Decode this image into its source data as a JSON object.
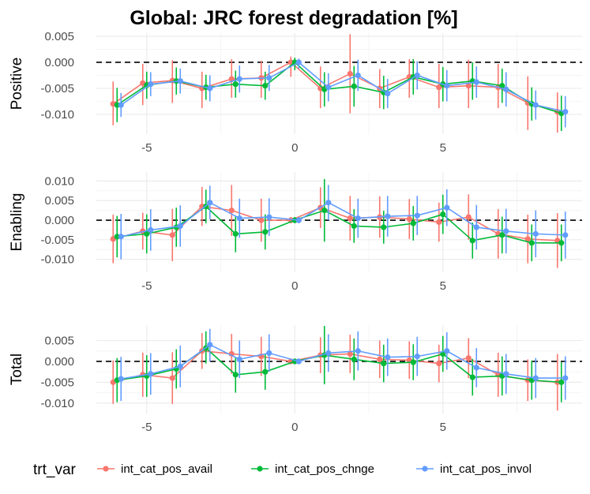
{
  "title": "Global: JRC forest degradation [%]",
  "legend": {
    "title": "trt_var",
    "entries": [
      "int_cat_pos_avail",
      "int_cat_pos_chnge",
      "int_cat_pos_invol"
    ]
  },
  "colors": {
    "int_cat_pos_avail": "#F8766D",
    "int_cat_pos_chnge": "#00BA38",
    "int_cat_pos_invol": "#619CFF",
    "zero_line": "#000000",
    "grid_major": "#EBEBEB",
    "grid_minor": "#F4F4F4"
  },
  "chart_data": [
    {
      "type": "line",
      "panel": "Positive",
      "ylabel": "Positive",
      "xlabel": "",
      "xlim": [
        -6.7,
        9.7
      ],
      "ylim": [
        -0.0138,
        0.0056
      ],
      "x_ticks": [
        -5,
        0,
        5
      ],
      "x_tick_labels": [
        "-5",
        "0",
        "5"
      ],
      "y_ticks": [
        0.005,
        0.0,
        -0.005,
        -0.01
      ],
      "y_tick_labels": [
        "0.005",
        "0.000",
        "-0.005",
        "-0.010"
      ],
      "grid": true,
      "reference_line": 0,
      "x": [
        -6,
        -5,
        -4,
        -3,
        -2,
        -1,
        0,
        1,
        2,
        3,
        4,
        5,
        6,
        7,
        8,
        9
      ],
      "series": [
        {
          "name": "int_cat_pos_avail",
          "values": [
            -0.008,
            -0.004,
            -0.0035,
            -0.005,
            -0.0032,
            -0.003,
            0.0,
            -0.005,
            -0.0022,
            -0.005,
            -0.0028,
            -0.0048,
            -0.0045,
            -0.0048,
            -0.0078,
            -0.0095
          ],
          "lower": [
            -0.0121,
            -0.0082,
            -0.0078,
            -0.0088,
            -0.0068,
            -0.0068,
            -0.0028,
            -0.0088,
            -0.0098,
            -0.0088,
            -0.0068,
            -0.0088,
            -0.0088,
            -0.0088,
            -0.013,
            -0.0135
          ],
          "upper": [
            -0.0037,
            -0.0003,
            0.0004,
            -0.0018,
            0.0006,
            0.0003,
            0.0011,
            -0.0008,
            0.0054,
            -0.0013,
            0.0006,
            -0.0003,
            0.0005,
            -0.0003,
            -0.0027,
            -0.0058
          ]
        },
        {
          "name": "int_cat_pos_chnge",
          "values": [
            -0.0082,
            -0.0044,
            -0.0036,
            -0.0048,
            -0.0042,
            -0.0045,
            0.0,
            -0.0052,
            -0.0046,
            -0.0058,
            -0.0028,
            -0.0042,
            -0.0036,
            -0.0045,
            -0.008,
            -0.0098
          ],
          "lower": [
            -0.0115,
            -0.007,
            -0.0062,
            -0.0072,
            -0.0068,
            -0.0072,
            -0.0015,
            -0.0085,
            -0.0085,
            -0.009,
            -0.0062,
            -0.0075,
            -0.0072,
            -0.0078,
            -0.0112,
            -0.0132
          ],
          "upper": [
            -0.0049,
            -0.0018,
            -0.001,
            -0.0024,
            -0.0016,
            -0.0018,
            0.0009,
            -0.0019,
            -0.0007,
            -0.0026,
            0.0006,
            -0.0009,
            0.0,
            -0.0012,
            -0.0048,
            -0.0064
          ]
        },
        {
          "name": "int_cat_pos_invol",
          "values": [
            -0.0082,
            -0.0042,
            -0.0036,
            -0.005,
            -0.0032,
            -0.003,
            0.0,
            -0.0048,
            -0.0025,
            -0.006,
            -0.0025,
            -0.0045,
            -0.0038,
            -0.0052,
            -0.0082,
            -0.0095
          ],
          "lower": [
            -0.0105,
            -0.0065,
            -0.006,
            -0.0075,
            -0.0058,
            -0.0055,
            -0.0012,
            -0.0075,
            -0.0055,
            -0.0088,
            -0.0052,
            -0.0075,
            -0.0068,
            -0.0085,
            -0.011,
            -0.0125
          ],
          "upper": [
            -0.0059,
            -0.0019,
            -0.0012,
            -0.0025,
            -0.0006,
            -0.0005,
            0.0007,
            -0.0021,
            0.0005,
            -0.0032,
            0.0002,
            -0.0015,
            -0.0008,
            -0.0019,
            -0.0054,
            -0.0065
          ]
        }
      ]
    },
    {
      "type": "line",
      "panel": "Enabling",
      "ylabel": "Enabling",
      "xlabel": "",
      "xlim": [
        -6.7,
        9.7
      ],
      "ylim": [
        -0.0133,
        0.0123
      ],
      "x_ticks": [
        -5,
        0,
        5
      ],
      "x_tick_labels": [
        "-5",
        "0",
        "5"
      ],
      "y_ticks": [
        0.01,
        0.005,
        0.0,
        -0.005,
        -0.01
      ],
      "y_tick_labels": [
        "0.010",
        "0.005",
        "0.000",
        "-0.005",
        "-0.010"
      ],
      "grid": true,
      "reference_line": 0,
      "x": [
        -6,
        -5,
        -4,
        -3,
        -2,
        -1,
        0,
        1,
        2,
        3,
        4,
        5,
        6,
        7,
        8,
        9
      ],
      "series": [
        {
          "name": "int_cat_pos_avail",
          "values": [
            -0.0048,
            -0.0028,
            -0.0038,
            0.0035,
            0.0025,
            0.0,
            0.0,
            0.0032,
            0.0005,
            0.0008,
            0.0003,
            -0.0005,
            0.0008,
            -0.0035,
            -0.0048,
            -0.0052
          ],
          "lower": [
            -0.011,
            -0.0075,
            -0.0105,
            -0.0015,
            -0.004,
            -0.0055,
            -0.0008,
            -0.002,
            -0.0052,
            -0.0045,
            -0.0048,
            -0.0055,
            -0.005,
            -0.0098,
            -0.011,
            -0.0122
          ],
          "upper": [
            0.0014,
            0.0019,
            0.0029,
            0.0085,
            0.009,
            0.0055,
            0.0008,
            0.0084,
            0.0062,
            0.0061,
            0.0054,
            0.0045,
            0.0066,
            0.0028,
            0.0014,
            0.0018
          ]
        },
        {
          "name": "int_cat_pos_chnge",
          "values": [
            -0.0042,
            -0.0035,
            -0.0018,
            0.0035,
            -0.0035,
            -0.003,
            0.0,
            0.0025,
            -0.0015,
            -0.0018,
            -0.0008,
            0.0015,
            -0.0052,
            -0.0038,
            -0.0058,
            -0.0058
          ],
          "lower": [
            -0.0095,
            -0.0085,
            -0.0068,
            -0.0008,
            -0.0082,
            -0.0075,
            -0.0008,
            -0.0055,
            -0.0058,
            -0.006,
            -0.0052,
            -0.0035,
            -0.0098,
            -0.0085,
            -0.0105,
            -0.0105
          ],
          "upper": [
            0.0011,
            0.0015,
            0.0032,
            0.0078,
            0.0012,
            0.0015,
            0.0008,
            0.0105,
            0.0028,
            0.0024,
            0.0036,
            0.0065,
            -0.0006,
            0.0009,
            -0.0011,
            -0.0011
          ]
        },
        {
          "name": "int_cat_pos_invol",
          "values": [
            -0.0042,
            -0.0025,
            -0.0015,
            0.0045,
            0.0005,
            0.0008,
            0.0,
            0.0045,
            0.0005,
            0.001,
            0.0012,
            0.0032,
            -0.0018,
            -0.0028,
            -0.0035,
            -0.0038
          ],
          "lower": [
            -0.01,
            -0.0078,
            -0.0068,
            0.0002,
            -0.0045,
            -0.004,
            -0.0008,
            0.0,
            -0.0045,
            -0.0042,
            -0.0038,
            -0.0015,
            -0.0075,
            -0.0085,
            -0.0095,
            -0.0098
          ],
          "upper": [
            0.0016,
            0.0028,
            0.0038,
            0.0088,
            0.0055,
            0.0056,
            0.0008,
            0.009,
            0.0055,
            0.0062,
            0.0062,
            0.0079,
            0.0039,
            0.0029,
            0.0025,
            0.0022
          ]
        }
      ]
    },
    {
      "type": "line",
      "panel": "Total",
      "ylabel": "Total",
      "xlabel": "",
      "xlim": [
        -6.7,
        9.7
      ],
      "ylim": [
        -0.0125,
        0.0087
      ],
      "x_ticks": [
        -5,
        0,
        5
      ],
      "x_tick_labels": [
        "-5",
        "0",
        "5"
      ],
      "y_ticks": [
        0.005,
        0.0,
        -0.005,
        -0.01
      ],
      "y_tick_labels": [
        "0.005",
        "0.000",
        "-0.005",
        "-0.010"
      ],
      "grid": true,
      "reference_line": 0,
      "x": [
        -6,
        -5,
        -4,
        -3,
        -2,
        -1,
        0,
        1,
        2,
        3,
        4,
        5,
        6,
        7,
        8,
        9
      ],
      "series": [
        {
          "name": "int_cat_pos_avail",
          "values": [
            -0.005,
            -0.0032,
            -0.004,
            0.0025,
            0.0018,
            0.0012,
            0.0,
            0.0015,
            0.0018,
            0.0005,
            0.0003,
            -0.0005,
            0.0008,
            -0.0032,
            -0.0045,
            -0.005
          ],
          "lower": [
            -0.0102,
            -0.0085,
            -0.0102,
            -0.0018,
            -0.003,
            -0.0035,
            -0.0007,
            -0.0028,
            -0.0028,
            -0.004,
            -0.0042,
            -0.005,
            -0.004,
            -0.0085,
            -0.0095,
            -0.0118
          ],
          "upper": [
            0.0002,
            0.0021,
            0.0022,
            0.0068,
            0.0066,
            0.0059,
            0.0007,
            0.0058,
            0.0064,
            0.005,
            0.0048,
            0.004,
            0.0056,
            0.0021,
            0.0005,
            0.0018
          ]
        },
        {
          "name": "int_cat_pos_chnge",
          "values": [
            -0.0045,
            -0.0035,
            -0.0018,
            0.0032,
            -0.0032,
            -0.0025,
            0.0,
            0.0015,
            0.0005,
            -0.0005,
            -0.0002,
            0.0018,
            -0.0038,
            -0.0035,
            -0.0045,
            -0.005
          ],
          "lower": [
            -0.0098,
            -0.0085,
            -0.0065,
            -0.0005,
            -0.0075,
            -0.0068,
            -0.0007,
            -0.0055,
            -0.0045,
            -0.005,
            -0.0045,
            -0.0025,
            -0.0082,
            -0.0082,
            -0.0092,
            -0.0098
          ],
          "upper": [
            0.0008,
            0.0015,
            0.0029,
            0.0072,
            0.0011,
            0.0018,
            0.0007,
            0.0085,
            0.0055,
            0.004,
            0.0041,
            0.0061,
            0.0006,
            0.0012,
            0.0002,
            -0.0002
          ]
        },
        {
          "name": "int_cat_pos_invol",
          "values": [
            -0.0042,
            -0.003,
            -0.0012,
            0.004,
            0.0005,
            0.002,
            0.0,
            0.002,
            0.0025,
            0.001,
            0.0012,
            0.0025,
            -0.0015,
            -0.003,
            -0.004,
            -0.004
          ],
          "lower": [
            -0.0095,
            -0.008,
            -0.0062,
            0.0,
            -0.004,
            -0.0025,
            -0.0007,
            -0.0025,
            -0.0022,
            -0.0035,
            -0.0035,
            -0.002,
            -0.0062,
            -0.0078,
            -0.0088,
            -0.0092
          ],
          "upper": [
            0.0011,
            0.002,
            0.0038,
            0.0078,
            0.005,
            0.0065,
            0.0007,
            0.0065,
            0.0072,
            0.0055,
            0.0059,
            0.007,
            0.0032,
            0.0018,
            0.0008,
            0.0012
          ]
        }
      ]
    }
  ]
}
